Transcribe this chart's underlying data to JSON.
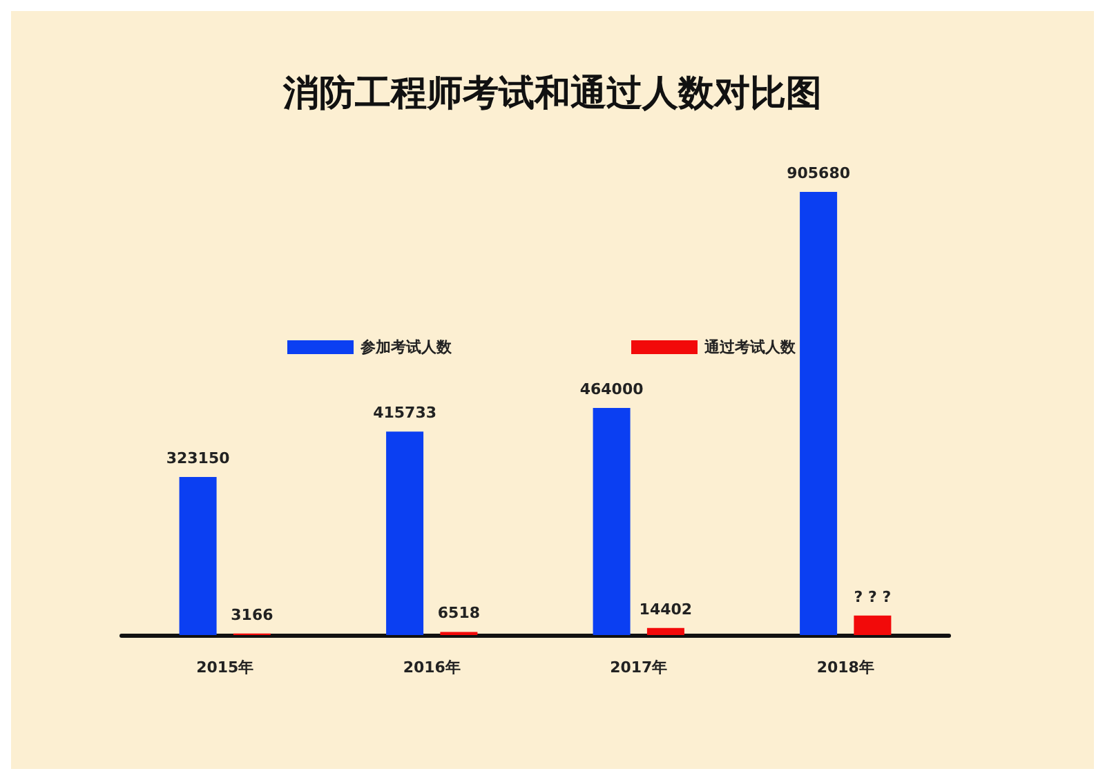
{
  "chart_data": {
    "type": "bar",
    "title": "消防工程师考试和通过人数对比图",
    "categories": [
      "2015年",
      "2016年",
      "2017年",
      "2018年"
    ],
    "series": [
      {
        "name": "参加考试人数",
        "color": "#0b3ff2",
        "values": [
          323150,
          415733,
          464000,
          905680
        ],
        "value_labels": [
          "323150",
          "415733",
          "464000",
          "905680"
        ]
      },
      {
        "name": "通过考试人数",
        "color": "#f20a0a",
        "values": [
          3166,
          6518,
          14402,
          40000
        ],
        "value_labels": [
          "3166",
          "6518",
          "14402",
          "? ? ?"
        ]
      }
    ],
    "legend": "top left",
    "grid": false
  }
}
